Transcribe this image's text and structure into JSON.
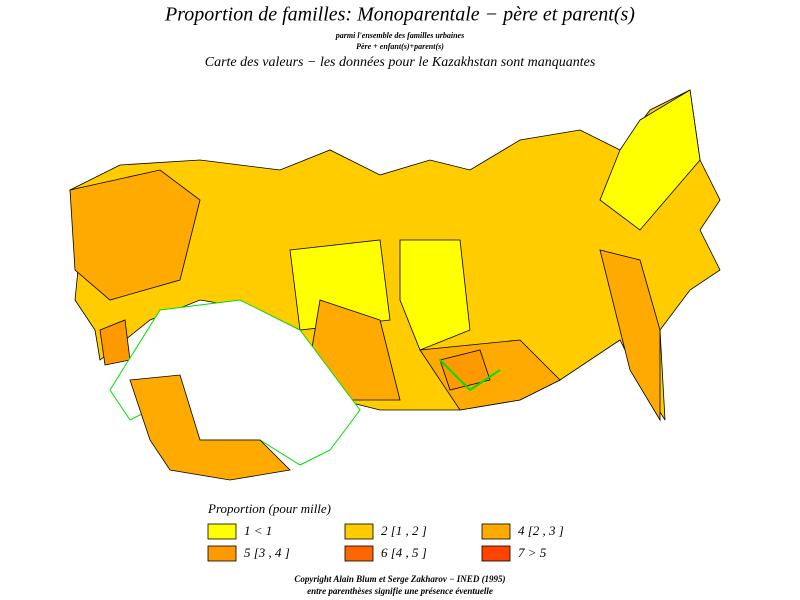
{
  "header": {
    "title": "Proportion de familles: Monoparentale  −  père et parent(s)",
    "subtitle_1": "parmi l'ensemble des familles urbaines",
    "subtitle_2": "Père +  enfant(s)+parent(s)",
    "subtitle_3": "Carte des valeurs  −  les données pour le Kazakhstan sont manquantes"
  },
  "legend": {
    "title": "Proportion  (pour mille)",
    "items": [
      {
        "label": "1  <  1",
        "color": "#ffff00"
      },
      {
        "label": "2  [1 ,  2 ]",
        "color": "#ffcc00"
      },
      {
        "label": "4  [2 ,  3 ]",
        "color": "#ffaa00"
      },
      {
        "label": "5  [3 ,  4 ]",
        "color": "#ff9900"
      },
      {
        "label": "6  [4 ,  5 ]",
        "color": "#ff6600"
      },
      {
        "label": "7  >  5",
        "color": "#ff4400"
      }
    ]
  },
  "footer": {
    "copyright": "Copyright Alain Blum et Serge Zakharov  −  INED (1995)",
    "note": "entre parenthèses signifie une présence éventuelle"
  }
}
